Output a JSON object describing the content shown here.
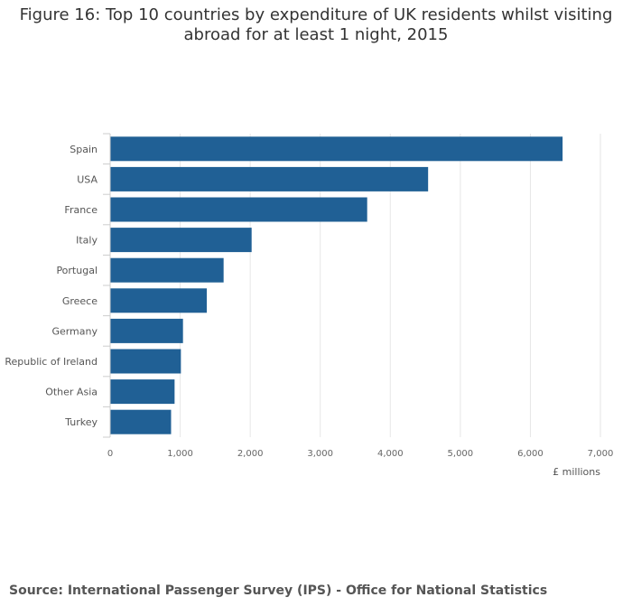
{
  "chart_data": {
    "type": "bar",
    "orientation": "horizontal",
    "title_lines": [
      "Figure 16: Top 10 countries by expenditure of UK residents whilst visiting",
      "abroad for at least 1 night, 2015"
    ],
    "categories": [
      "Spain",
      "USA",
      "France",
      "Italy",
      "Portugal",
      "Greece",
      "Germany",
      "Republic of Ireland",
      "Other Asia",
      "Turkey"
    ],
    "values": [
      6460,
      4540,
      3670,
      2020,
      1620,
      1380,
      1040,
      1010,
      920,
      870
    ],
    "xlim": [
      0,
      7000
    ],
    "xticks": [
      0,
      1000,
      2000,
      3000,
      4000,
      5000,
      6000,
      7000
    ],
    "xtick_labels": [
      "0",
      "1,000",
      "2,000",
      "3,000",
      "4,000",
      "5,000",
      "6,000",
      "7,000"
    ],
    "xlabel": "£ millions",
    "ylabel": "",
    "grid": true,
    "bar_color": "#206095"
  },
  "source": "Source: International Passenger Survey (IPS) - Office for National Statistics"
}
